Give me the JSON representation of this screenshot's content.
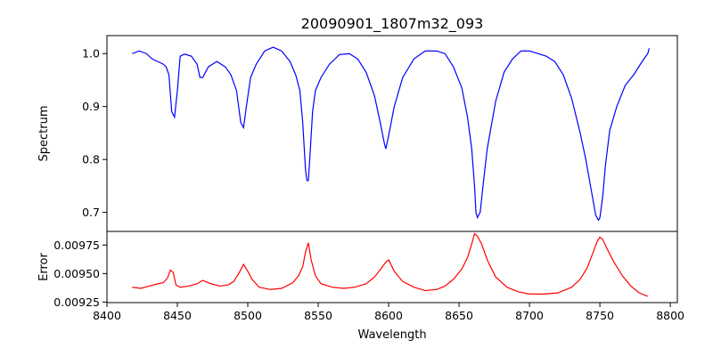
{
  "chart_data": {
    "title": "20090901_1807m32_093",
    "panels": [
      {
        "type": "line",
        "ylabel": "Spectrum",
        "color": "#0000ff",
        "xlim": [
          8400,
          8805
        ],
        "ylim": [
          0.664,
          1.034
        ],
        "yticks": [
          0.7,
          0.8,
          0.9,
          1.0
        ],
        "ytick_labels": [
          "0.7",
          "0.8",
          "0.9",
          "1.0"
        ],
        "x": [
          8418,
          8423,
          8428,
          8432,
          8436,
          8440,
          8442,
          8444,
          8446,
          8448,
          8450,
          8452,
          8455,
          8460,
          8464,
          8466,
          8468,
          8472,
          8478,
          8484,
          8488,
          8492,
          8495,
          8497,
          8499,
          8502,
          8506,
          8512,
          8518,
          8524,
          8530,
          8534,
          8537,
          8539,
          8541,
          8542,
          8543,
          8544,
          8546,
          8548,
          8552,
          8558,
          8565,
          8572,
          8578,
          8584,
          8590,
          8594,
          8597,
          8598,
          8600,
          8604,
          8610,
          8618,
          8626,
          8634,
          8640,
          8646,
          8652,
          8656,
          8659,
          8661,
          8662,
          8663,
          8665,
          8667,
          8670,
          8676,
          8682,
          8688,
          8694,
          8700,
          8706,
          8712,
          8718,
          8724,
          8730,
          8736,
          8740,
          8744,
          8747,
          8749,
          8750,
          8752,
          8754,
          8757,
          8762,
          8768,
          8774,
          8780,
          8784,
          8785
        ],
        "y": [
          1.0,
          1.005,
          1.0,
          0.99,
          0.985,
          0.98,
          0.975,
          0.96,
          0.89,
          0.88,
          0.93,
          0.995,
          0.999,
          0.995,
          0.98,
          0.955,
          0.955,
          0.975,
          0.985,
          0.975,
          0.96,
          0.93,
          0.87,
          0.86,
          0.9,
          0.955,
          0.98,
          1.005,
          1.012,
          1.005,
          0.985,
          0.96,
          0.93,
          0.87,
          0.78,
          0.76,
          0.76,
          0.8,
          0.89,
          0.93,
          0.955,
          0.98,
          0.998,
          1.0,
          0.99,
          0.965,
          0.92,
          0.87,
          0.83,
          0.82,
          0.845,
          0.9,
          0.955,
          0.99,
          1.005,
          1.005,
          1.0,
          0.975,
          0.935,
          0.88,
          0.82,
          0.75,
          0.7,
          0.69,
          0.7,
          0.75,
          0.82,
          0.91,
          0.965,
          0.99,
          1.005,
          1.005,
          1.0,
          0.995,
          0.985,
          0.96,
          0.915,
          0.85,
          0.8,
          0.74,
          0.695,
          0.685,
          0.69,
          0.73,
          0.79,
          0.855,
          0.9,
          0.94,
          0.96,
          0.985,
          1.0,
          1.01
        ]
      },
      {
        "type": "line",
        "ylabel": "Error",
        "xlabel": "Wavelength",
        "color": "#ff0000",
        "xlim": [
          8400,
          8805
        ],
        "ylim": [
          0.009245,
          0.00987
        ],
        "yticks": [
          0.00925,
          0.0095,
          0.00975
        ],
        "ytick_labels": [
          "0.00925",
          "0.00950",
          "0.00975"
        ],
        "xticks": [
          8400,
          8450,
          8500,
          8550,
          8600,
          8650,
          8700,
          8750,
          8800
        ],
        "xtick_labels": [
          "8400",
          "8450",
          "8500",
          "8550",
          "8600",
          "8650",
          "8700",
          "8750",
          "8800"
        ],
        "x": [
          8418,
          8424,
          8430,
          8436,
          8440,
          8443,
          8445,
          8447,
          8449,
          8452,
          8458,
          8464,
          8468,
          8474,
          8480,
          8486,
          8490,
          8494,
          8497,
          8500,
          8503,
          8508,
          8516,
          8524,
          8532,
          8536,
          8539,
          8541,
          8543,
          8545,
          8548,
          8552,
          8560,
          8568,
          8576,
          8584,
          8590,
          8595,
          8598,
          8600,
          8604,
          8610,
          8618,
          8626,
          8634,
          8640,
          8646,
          8652,
          8656,
          8659,
          8661,
          8663,
          8666,
          8670,
          8676,
          8684,
          8692,
          8700,
          8710,
          8720,
          8730,
          8736,
          8741,
          8745,
          8748,
          8750,
          8752,
          8755,
          8760,
          8766,
          8772,
          8778,
          8784
        ],
        "y": [
          0.00938,
          0.00937,
          0.00939,
          0.00941,
          0.00942,
          0.00946,
          0.00953,
          0.00951,
          0.0094,
          0.00938,
          0.00939,
          0.00941,
          0.00944,
          0.00941,
          0.00939,
          0.0094,
          0.00943,
          0.00951,
          0.00958,
          0.00952,
          0.00945,
          0.00938,
          0.00936,
          0.00937,
          0.00942,
          0.00948,
          0.00956,
          0.00969,
          0.00977,
          0.00962,
          0.00948,
          0.00941,
          0.00938,
          0.00937,
          0.00938,
          0.00941,
          0.00947,
          0.00955,
          0.0096,
          0.00962,
          0.00952,
          0.00943,
          0.00938,
          0.00935,
          0.00936,
          0.00939,
          0.00945,
          0.00954,
          0.00964,
          0.00976,
          0.00985,
          0.00983,
          0.00976,
          0.00962,
          0.00947,
          0.00938,
          0.00934,
          0.00932,
          0.00932,
          0.00933,
          0.00938,
          0.00945,
          0.00955,
          0.00968,
          0.00978,
          0.00982,
          0.0098,
          0.00972,
          0.0096,
          0.00948,
          0.00939,
          0.00933,
          0.0093
        ]
      }
    ]
  }
}
